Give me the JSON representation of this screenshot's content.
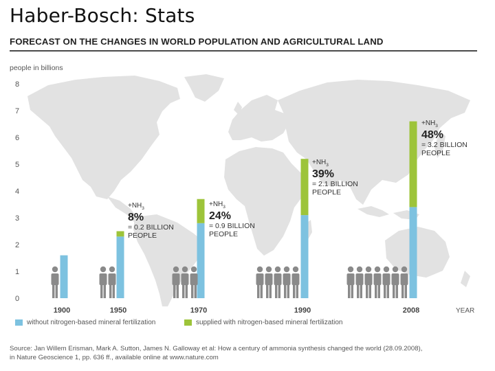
{
  "slide": {
    "title": "Haber-Bosch: Stats"
  },
  "chart_data": {
    "type": "bar",
    "title": "FORECAST ON THE CHANGES IN WORLD POPULATION AND AGRICULTURAL LAND",
    "ylabel": "people in billions",
    "xlabel": "YEAR",
    "ylim": [
      0,
      8
    ],
    "yticks": [
      "0",
      "1",
      "2",
      "3",
      "4",
      "5",
      "6",
      "7",
      "8"
    ],
    "categories": [
      "1900",
      "1950",
      "1970",
      "1990",
      "2008"
    ],
    "stacked": true,
    "series": [
      {
        "name": "without nitrogen-based mineral fertilization",
        "color": "#7dc2e0",
        "values": [
          1.6,
          2.3,
          2.8,
          3.1,
          3.4
        ]
      },
      {
        "name": "supplied with nitrogen-based mineral fertilization",
        "color": "#9dc43a",
        "values": [
          0.0,
          0.2,
          0.9,
          2.1,
          3.2
        ]
      }
    ],
    "people_icons": [
      1,
      2,
      3,
      5,
      7
    ],
    "annotations": [
      {
        "category": "1950",
        "prefix": "+NH",
        "subscript": "3",
        "percent": "8%",
        "line1": "= 0.2 BILLION",
        "line2": "PEOPLE"
      },
      {
        "category": "1970",
        "prefix": "+NH",
        "subscript": "3",
        "percent": "24%",
        "line1": "= 0.9 BILLION",
        "line2": "PEOPLE"
      },
      {
        "category": "1990",
        "prefix": "+NH",
        "subscript": "3",
        "percent": "39%",
        "line1": "= 2.1 BILLION",
        "line2": "PEOPLE"
      },
      {
        "category": "2008",
        "prefix": "+NH",
        "subscript": "3",
        "percent": "48%",
        "line1": "= 3.2 BILLION",
        "line2": "PEOPLE"
      }
    ]
  },
  "source": {
    "line1": "Source: Jan Willem Erisman, Mark A. Sutton, James N. Galloway et al: How a century of ammonia synthesis changed the world (28.09.2008),",
    "line2": "in Nature Geoscience 1, pp. 636 ff., available online at www.nature.com"
  },
  "colors": {
    "map": "#e2e2e2",
    "axis_text": "#555555"
  }
}
